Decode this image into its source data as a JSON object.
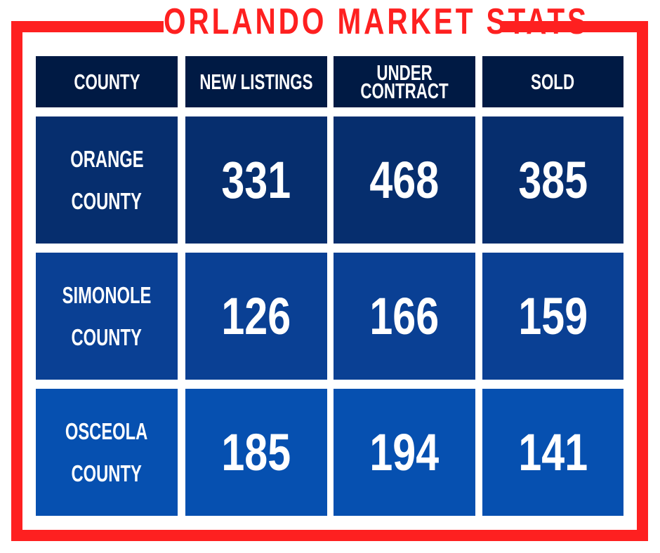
{
  "title": "ORLANDO MARKET STATS",
  "colors": {
    "frame": "#fe2020",
    "title": "#fe2020",
    "header_bg": "#001a44",
    "row_orange_bg": "#062e6e",
    "row_simonole_bg": "#0a4094",
    "row_osceola_bg": "#0650b0",
    "text": "#ffffff"
  },
  "table": {
    "headers": {
      "county": "COUNTY",
      "new_listings": "NEW LISTINGS",
      "under_contract_line1": "UNDER",
      "under_contract_line2": "CONTRACT",
      "sold": "SOLD"
    },
    "rows": [
      {
        "county_line1": "ORANGE",
        "county_line2": "COUNTY",
        "new_listings": "331",
        "under_contract": "468",
        "sold": "385"
      },
      {
        "county_line1": "SIMONOLE",
        "county_line2": "COUNTY",
        "new_listings": "126",
        "under_contract": "166",
        "sold": "159"
      },
      {
        "county_line1": "OSCEOLA",
        "county_line2": "COUNTY",
        "new_listings": "185",
        "under_contract": "194",
        "sold": "141"
      }
    ]
  }
}
